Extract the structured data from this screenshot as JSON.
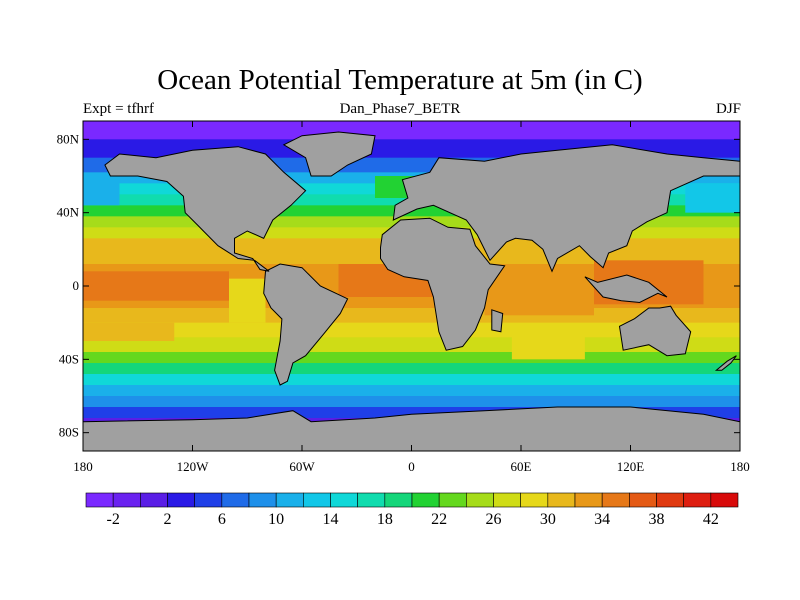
{
  "title": "Ocean Potential Temperature at 5m (in C)",
  "subtitle_left": "Expt = tfhrf",
  "subtitle_center": "Dan_Phase7_BETR",
  "subtitle_right": "DJF",
  "chart_data": {
    "type": "heatmap",
    "projection": "cylindrical-equidistant",
    "xlim": [
      -180,
      180
    ],
    "ylim": [
      -90,
      90
    ],
    "x_ticks": [
      {
        "value": -180,
        "label": "180"
      },
      {
        "value": -120,
        "label": "120W"
      },
      {
        "value": -60,
        "label": "60W"
      },
      {
        "value": 0,
        "label": "0"
      },
      {
        "value": 60,
        "label": "60E"
      },
      {
        "value": 120,
        "label": "120E"
      },
      {
        "value": 180,
        "label": "180"
      }
    ],
    "y_ticks": [
      {
        "value": 80,
        "label": "80N"
      },
      {
        "value": 40,
        "label": "40N"
      },
      {
        "value": 0,
        "label": "0"
      },
      {
        "value": -40,
        "label": "40S"
      },
      {
        "value": -80,
        "label": "80S"
      }
    ],
    "land_color": "#a0a0a0",
    "colorbar": {
      "levels": [
        -4,
        -2,
        0,
        2,
        4,
        6,
        8,
        10,
        12,
        14,
        16,
        18,
        20,
        22,
        24,
        26,
        28,
        30,
        32,
        34,
        36,
        38,
        40,
        42,
        44
      ],
      "tick_labels": [
        "-2",
        "2",
        "6",
        "10",
        "14",
        "18",
        "22",
        "26",
        "30",
        "34",
        "38",
        "42"
      ],
      "tick_values": [
        -2,
        2,
        6,
        10,
        14,
        18,
        22,
        26,
        30,
        34,
        38,
        42
      ],
      "colors": [
        "#7a29ff",
        "#6a22f0",
        "#5a1ee6",
        "#2a1ae6",
        "#1f3fe8",
        "#1f6be8",
        "#1e90ea",
        "#1ab0ea",
        "#12c7e8",
        "#10d8d8",
        "#10dcae",
        "#14d67a",
        "#22d233",
        "#64d81e",
        "#a6dc1a",
        "#cfdc16",
        "#e6d81a",
        "#e8b81c",
        "#e89818",
        "#e67818",
        "#e45a14",
        "#e03a10",
        "#de1e10",
        "#d80a0a"
      ]
    }
  }
}
